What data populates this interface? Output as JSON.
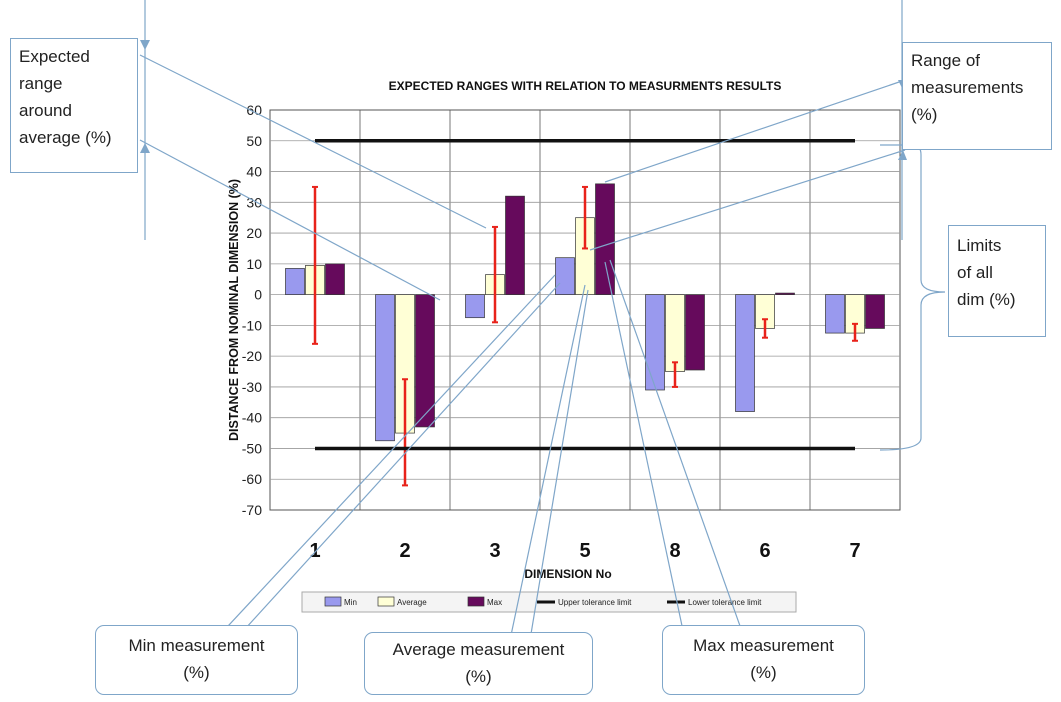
{
  "chart_data": {
    "type": "bar",
    "title": "EXPECTED RANGES WITH RELATION TO MEASURMENTS RESULTS",
    "xlabel": "DIMENSION No",
    "ylabel": "DISTANCE FROM NOMINAL DIMENSION (%)",
    "categories": [
      "1",
      "2",
      "3",
      "5",
      "8",
      "6",
      "7"
    ],
    "ylim": [
      -70,
      60
    ],
    "yticks": [
      "60",
      "50",
      "40",
      "30",
      "20",
      "10",
      "0",
      "-10",
      "-20",
      "-30",
      "-40",
      "-50",
      "-60",
      "-70"
    ],
    "grid": true,
    "series": [
      {
        "name": "Min",
        "color": "#9999ee",
        "values": [
          8.5,
          -47.5,
          -7.5,
          12,
          -31,
          -38,
          -12.5
        ]
      },
      {
        "name": "Average",
        "color": "#ffffd6",
        "values": [
          9.5,
          -45,
          6.5,
          25,
          -25,
          -11,
          -12.5
        ]
      },
      {
        "name": "Max",
        "color": "#660a5c",
        "values": [
          10,
          -43,
          32,
          36,
          -24.5,
          0.5,
          -11
        ]
      }
    ],
    "error_ranges": {
      "color": "#e8221a",
      "ranges": [
        [
          -16,
          35
        ],
        [
          -62,
          -27.5
        ],
        [
          -9,
          22
        ],
        [
          15,
          35
        ],
        [
          -30,
          -22
        ],
        [
          -14,
          -8
        ],
        [
          -15,
          -9.5
        ]
      ]
    },
    "reference_lines": [
      {
        "name": "Upper tolerance limit",
        "value": 50,
        "color": "#111111"
      },
      {
        "name": "Lower tolerance limit",
        "value": -50,
        "color": "#111111"
      }
    ],
    "legend": {
      "placement": "bottom",
      "items": [
        "Min",
        "Average",
        "Max",
        "Upper tolerance limit",
        "Lower tolerance limit"
      ]
    }
  },
  "annotations": {
    "expected_range": [
      "Expected",
      "range",
      "around",
      "average (%)"
    ],
    "range_of_measurements": [
      "Range of",
      "measurements",
      "(%)"
    ],
    "limits": [
      "Limits",
      "of all",
      "dim (%)"
    ],
    "min_measurement": [
      "Min measurement",
      "(%)"
    ],
    "average_measurement": [
      "Average  measurement",
      "(%)"
    ],
    "max_measurement": [
      "Max measurement",
      "(%)"
    ]
  }
}
